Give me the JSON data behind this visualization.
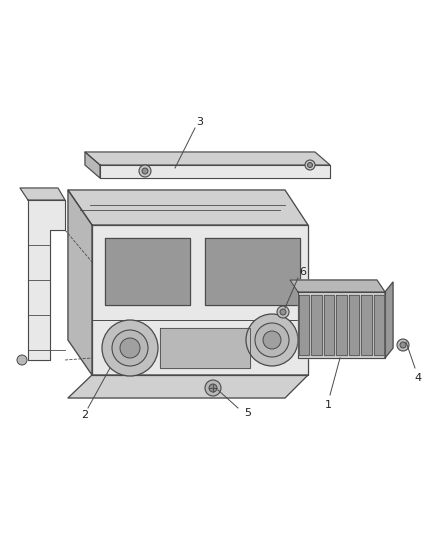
{
  "bg_color": "#ffffff",
  "line_color": "#4a4a4a",
  "fill_light": "#e8e8e8",
  "fill_mid": "#d0d0d0",
  "fill_dark": "#b8b8b8",
  "fill_darker": "#989898",
  "fig_width": 4.38,
  "fig_height": 5.33,
  "dpi": 100
}
